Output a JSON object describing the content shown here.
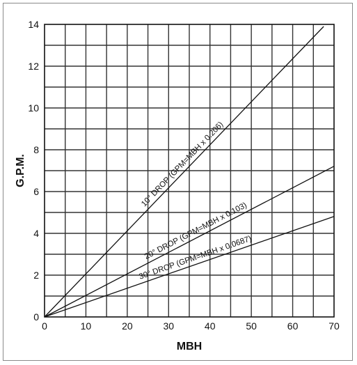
{
  "chart_data": {
    "type": "line",
    "title": "",
    "xlabel": "MBH",
    "ylabel": "G.P.M.",
    "xlim": [
      0,
      70
    ],
    "ylim": [
      0,
      14
    ],
    "grid": true,
    "x_ticks": [
      "0",
      "10",
      "20",
      "30",
      "40",
      "50",
      "60",
      "70"
    ],
    "y_ticks": [
      "0",
      "2",
      "4",
      "6",
      "8",
      "10",
      "12",
      "14"
    ],
    "series": [
      {
        "name": "10° DROP (GPM=MBH x 0.206)",
        "x": [
          0,
          67.5
        ],
        "y": [
          0,
          13.9
        ]
      },
      {
        "name": "20° DROP (GPM=MBH x 0.103)",
        "x": [
          0,
          70
        ],
        "y": [
          0,
          7.21
        ]
      },
      {
        "name": "30° DROP (GPM=MBH x 0.0687)",
        "x": [
          0,
          70
        ],
        "y": [
          0,
          4.81
        ]
      }
    ]
  }
}
